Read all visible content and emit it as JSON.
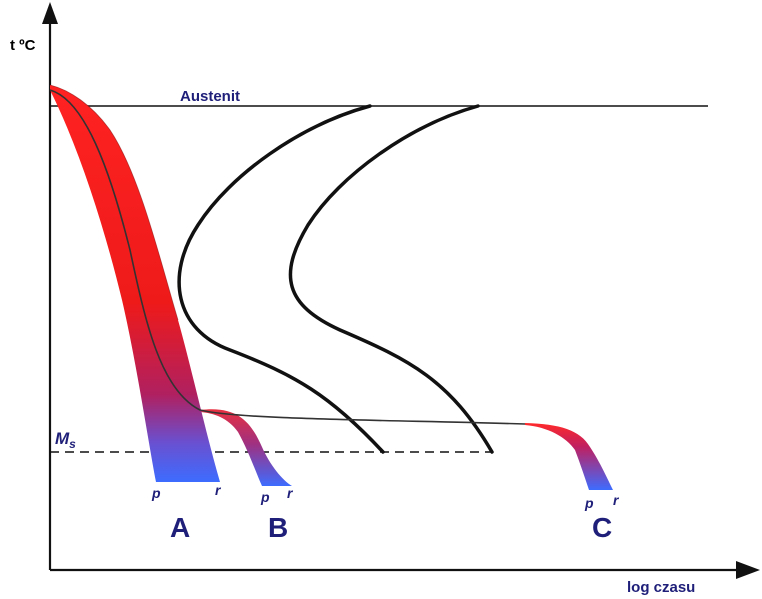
{
  "labels": {
    "y_axis": "t ºC",
    "x_axis": "log czasu",
    "austenite": "Austenit",
    "ms_main": "M",
    "ms_sub": "s",
    "curve_A": "A",
    "curve_B": "B",
    "curve_C": "C",
    "p": "p",
    "r": "r"
  },
  "colors": {
    "hot": "#ff2020",
    "mid": "#c0205a",
    "cold": "#3d6cff",
    "label": "#1f1f7a",
    "curve": "#111111"
  }
}
